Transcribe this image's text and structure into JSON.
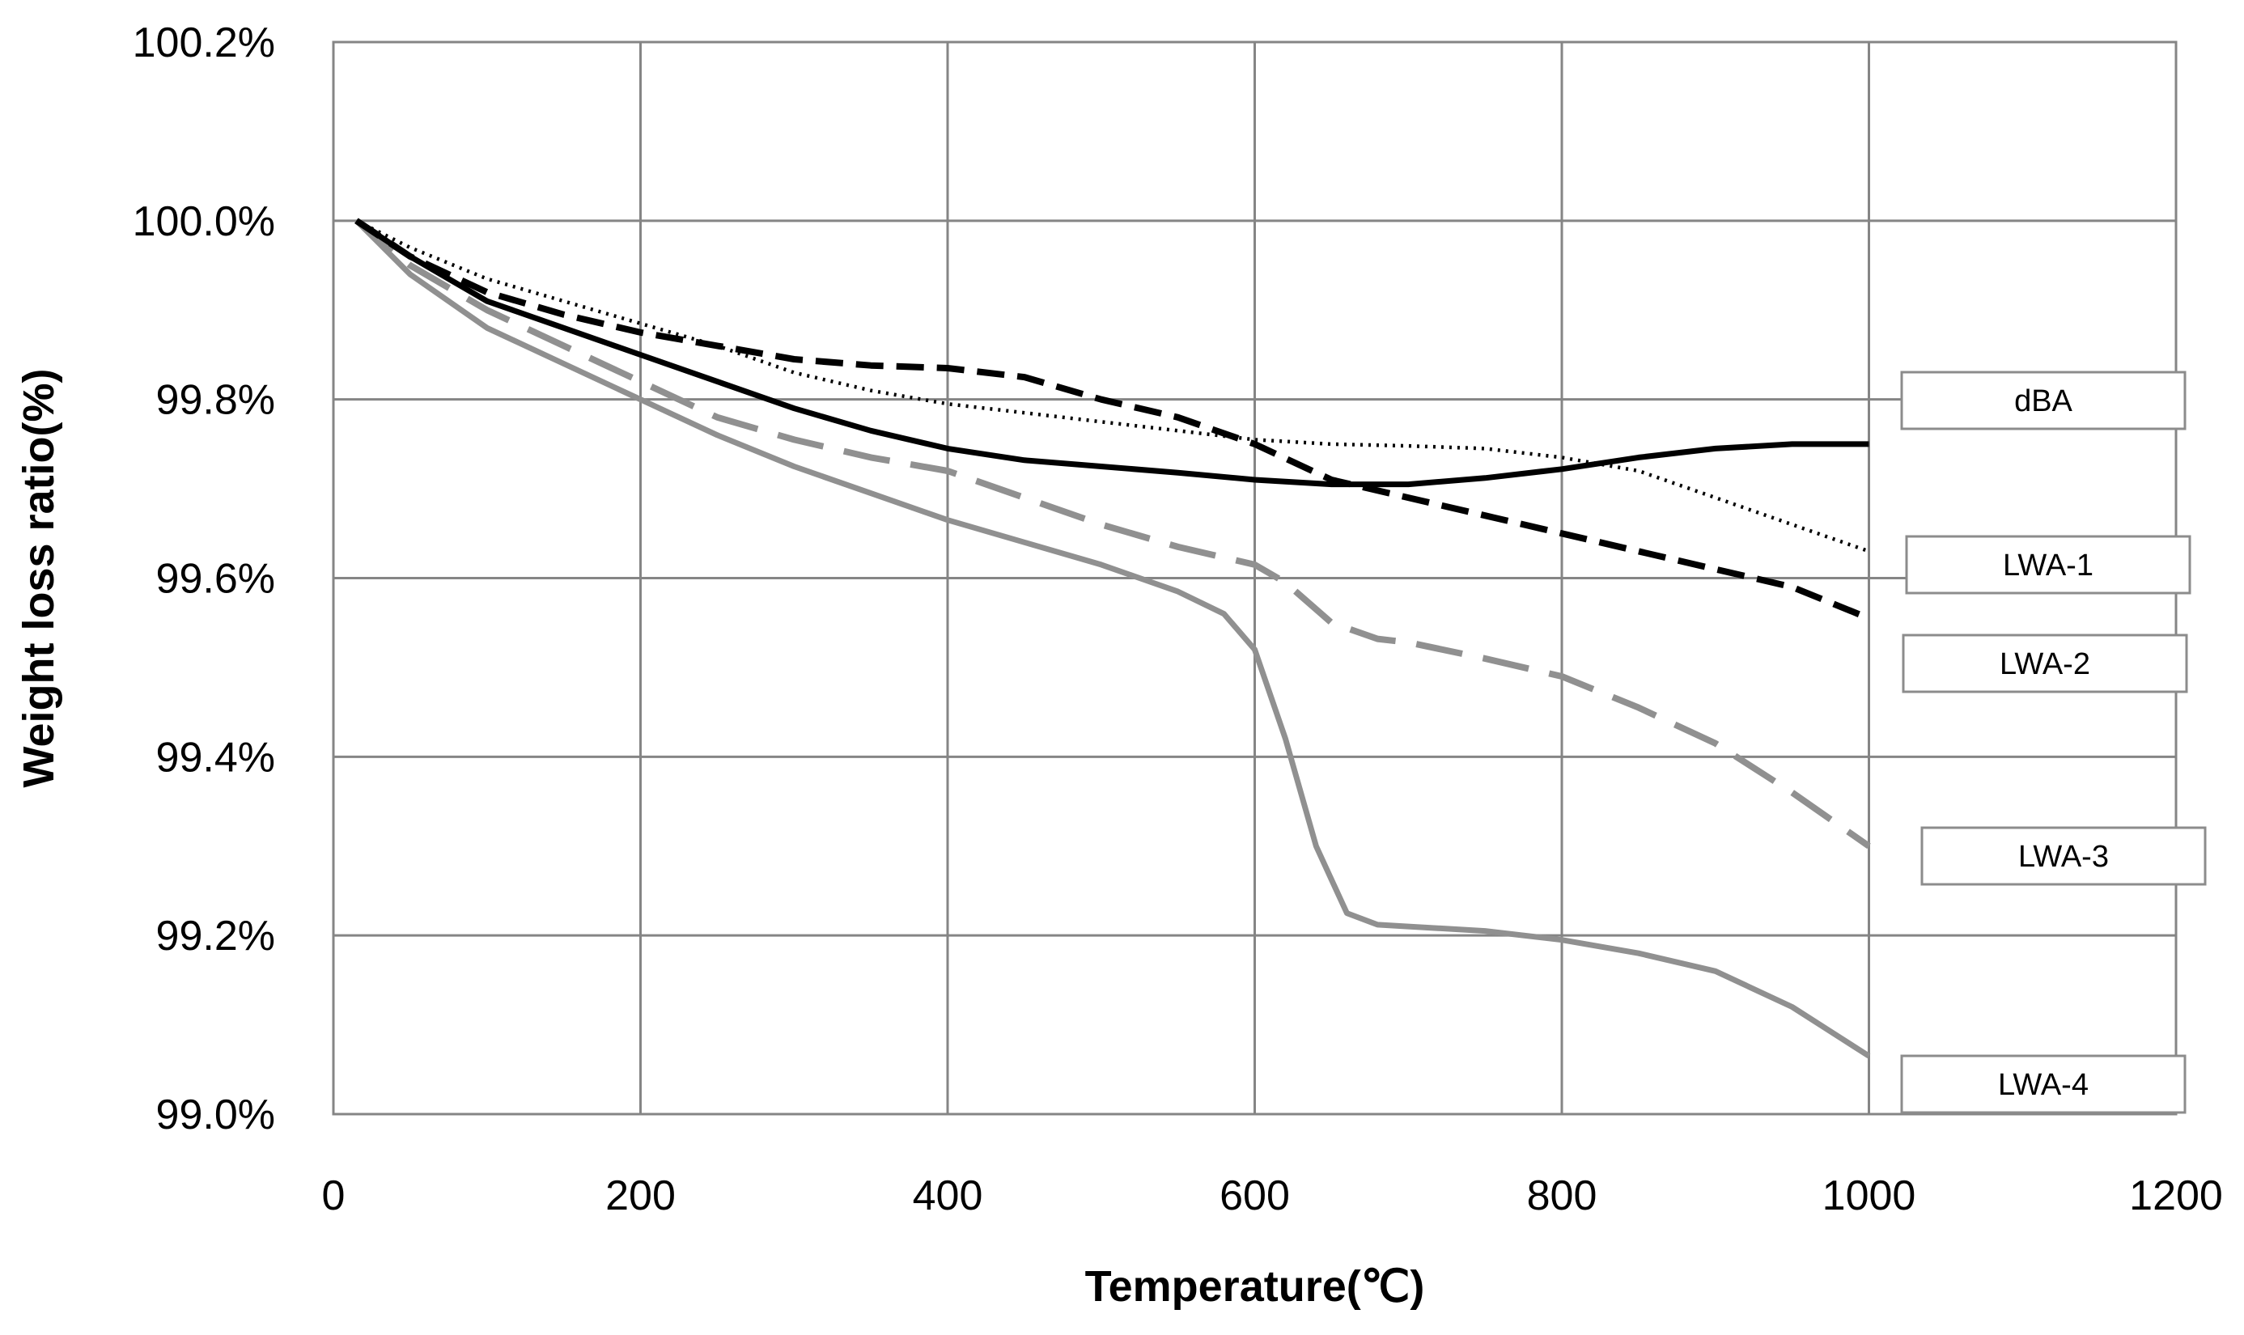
{
  "chart_data": {
    "type": "line",
    "title": "",
    "xlabel": "Temperature(℃)",
    "ylabel": "Weight loss ratio(%)",
    "xlim": [
      0,
      1200
    ],
    "ylim": [
      99.0,
      100.2
    ],
    "x_ticks": [
      0,
      200,
      400,
      600,
      800,
      1000,
      1200
    ],
    "y_ticks": [
      99.0,
      99.2,
      99.4,
      99.6,
      99.8,
      100.0,
      100.2
    ],
    "x_tick_labels": [
      "0",
      "200",
      "400",
      "600",
      "800",
      "1000",
      "1200"
    ],
    "y_tick_labels": [
      "99.0%",
      "99.2%",
      "99.4%",
      "99.6%",
      "99.8%",
      "100.0%",
      "100.2%"
    ],
    "grid": true,
    "legend_position": "right",
    "series": [
      {
        "name": "dBA",
        "style": "solid",
        "color": "#000000",
        "x": [
          15,
          50,
          100,
          150,
          200,
          250,
          300,
          350,
          400,
          450,
          500,
          550,
          600,
          650,
          700,
          750,
          800,
          850,
          900,
          950,
          1000
        ],
        "values": [
          100.0,
          99.96,
          99.91,
          99.88,
          99.85,
          99.82,
          99.79,
          99.765,
          99.745,
          99.732,
          99.725,
          99.718,
          99.71,
          99.705,
          99.705,
          99.712,
          99.722,
          99.735,
          99.745,
          99.75,
          99.75
        ]
      },
      {
        "name": "LWA-1",
        "style": "dotted",
        "color": "#000000",
        "x": [
          15,
          50,
          100,
          150,
          200,
          250,
          300,
          350,
          400,
          450,
          500,
          550,
          600,
          650,
          700,
          750,
          800,
          850,
          900,
          950,
          1000
        ],
        "values": [
          100.0,
          99.97,
          99.935,
          99.91,
          99.885,
          99.86,
          99.83,
          99.81,
          99.795,
          99.785,
          99.775,
          99.765,
          99.755,
          99.75,
          99.748,
          99.745,
          99.735,
          99.72,
          99.69,
          99.66,
          99.63
        ]
      },
      {
        "name": "LWA-2",
        "style": "dashed",
        "color": "#000000",
        "x": [
          15,
          50,
          100,
          150,
          200,
          250,
          300,
          350,
          400,
          450,
          500,
          550,
          600,
          650,
          700,
          750,
          800,
          850,
          900,
          950,
          1000
        ],
        "values": [
          100.0,
          99.96,
          99.92,
          99.895,
          99.875,
          99.86,
          99.845,
          99.838,
          99.835,
          99.825,
          99.8,
          99.78,
          99.75,
          99.71,
          99.69,
          99.67,
          99.65,
          99.63,
          99.61,
          99.59,
          99.555
        ]
      },
      {
        "name": "LWA-3",
        "style": "dashed",
        "color": "#909090",
        "x": [
          15,
          50,
          100,
          150,
          200,
          250,
          300,
          350,
          400,
          450,
          500,
          550,
          600,
          620,
          650,
          680,
          700,
          750,
          800,
          850,
          900,
          950,
          1000
        ],
        "values": [
          100.0,
          99.95,
          99.9,
          99.86,
          99.82,
          99.78,
          99.755,
          99.735,
          99.72,
          99.69,
          99.66,
          99.635,
          99.615,
          99.595,
          99.55,
          99.532,
          99.528,
          99.51,
          99.49,
          99.455,
          99.415,
          99.36,
          99.3
        ]
      },
      {
        "name": "LWA-4",
        "style": "solid",
        "color": "#909090",
        "x": [
          15,
          50,
          100,
          150,
          200,
          250,
          300,
          350,
          400,
          450,
          500,
          550,
          580,
          600,
          620,
          640,
          660,
          680,
          700,
          750,
          800,
          850,
          900,
          950,
          1000
        ],
        "values": [
          100.0,
          99.94,
          99.88,
          99.84,
          99.8,
          99.76,
          99.725,
          99.695,
          99.665,
          99.64,
          99.615,
          99.585,
          99.56,
          99.52,
          99.42,
          99.3,
          99.225,
          99.212,
          99.21,
          99.205,
          99.195,
          99.18,
          99.16,
          99.12,
          99.065
        ]
      }
    ]
  },
  "legend": {
    "items": [
      "dBA",
      "LWA-1",
      "LWA-2",
      "LWA-3",
      "LWA-4"
    ]
  }
}
